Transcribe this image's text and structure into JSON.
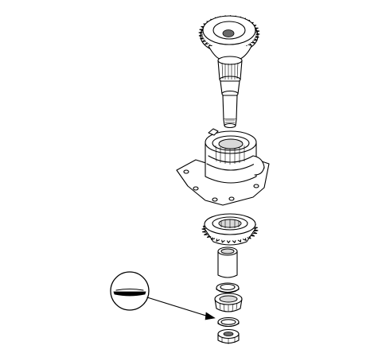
{
  "diagram": {
    "parts": [
      {
        "icon": "drive-gear-shaft"
      },
      {
        "icon": "housing-flange"
      },
      {
        "icon": "bevel-ring-gear"
      },
      {
        "icon": "sleeve-spacer"
      },
      {
        "icon": "thrust-shim"
      },
      {
        "icon": "tapered-roller-bearing"
      },
      {
        "icon": "circlip"
      },
      {
        "icon": "lock-nut"
      }
    ],
    "callout": {
      "icon": "shim-section-detail"
    }
  }
}
